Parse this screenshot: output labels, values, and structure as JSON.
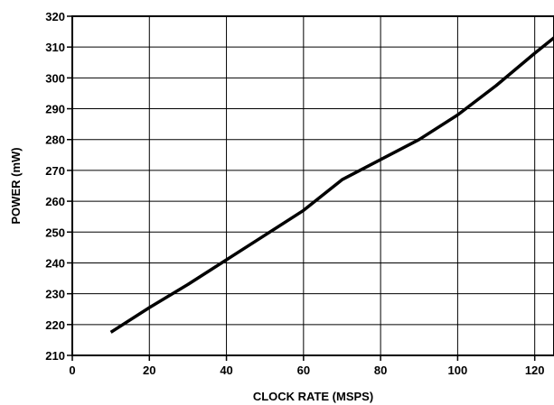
{
  "chart_data": {
    "type": "line",
    "xlabel": "CLOCK RATE (MSPS)",
    "ylabel": "POWER (mW)",
    "xlim": [
      0,
      125
    ],
    "ylim": [
      210,
      320
    ],
    "x_ticks": [
      0,
      20,
      40,
      60,
      80,
      100,
      120
    ],
    "y_ticks": [
      210,
      220,
      230,
      240,
      250,
      260,
      270,
      280,
      290,
      300,
      310,
      320
    ],
    "grid": true,
    "line_color": "#000000",
    "series": [
      {
        "x": [
          10,
          20,
          30,
          40,
          50,
          60,
          70,
          80,
          90,
          100,
          110,
          120,
          125
        ],
        "y": [
          217.5,
          225.5,
          233,
          241,
          249,
          257,
          267,
          273.5,
          280,
          288,
          297.5,
          308,
          313
        ]
      }
    ]
  }
}
